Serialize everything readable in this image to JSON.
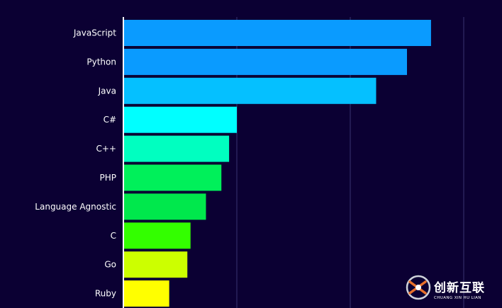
{
  "chart_data": {
    "type": "bar",
    "orientation": "horizontal",
    "categories": [
      "JavaScript",
      "Python",
      "Java",
      "C#",
      "C++",
      "PHP",
      "Language Agnostic",
      "C",
      "Go",
      "Ruby"
    ],
    "values": [
      67.8,
      62.5,
      55.7,
      25.0,
      23.3,
      21.6,
      18.2,
      14.8,
      14.1,
      10.1
    ],
    "colors": [
      "#0a9bff",
      "#0a9bff",
      "#05c0ff",
      "#00ffff",
      "#00ffc0",
      "#00f05a",
      "#00e84c",
      "#33ff00",
      "#ccff00",
      "#ffff00"
    ],
    "xlim": [
      0,
      75
    ],
    "grid": true,
    "title": "",
    "xlabel": "",
    "ylabel": ""
  },
  "watermark": {
    "text": "创新互联",
    "subtext": "CHUANG XIN HU LIAN"
  },
  "colors": {
    "background": "#0b0033",
    "grid": "#3a3470",
    "axis": "#ffffff",
    "text": "#ffffff"
  }
}
